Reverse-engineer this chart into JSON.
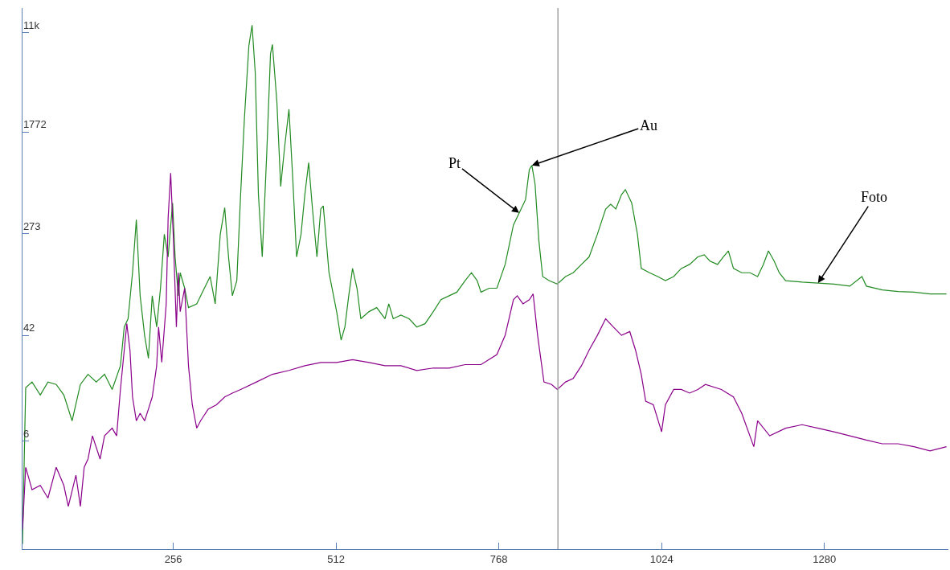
{
  "chart_data": {
    "type": "line",
    "log": "y",
    "marker": "none",
    "line_style": "solid",
    "xlim": [
      19,
      1475
    ],
    "ylim": [
      0.82,
      17400
    ],
    "xticks": [
      256,
      512,
      768,
      1024,
      1280
    ],
    "yticks": [
      6,
      42,
      273,
      1772,
      {
        "value": 11000,
        "label": "11k"
      }
    ],
    "ref_lines": [
      {
        "axis": "x",
        "value": 861,
        "color": "#a0a0a0"
      }
    ],
    "annotations": [
      {
        "text": "Pt",
        "x": 800,
        "y": 400
      },
      {
        "text": "Au",
        "x": 820,
        "y": 960
      },
      {
        "text": "Foto",
        "x": 1270,
        "y": 110
      }
    ],
    "series": [
      {
        "color": "#228b22",
        "x": [
          19,
          24,
          34,
          47,
          59,
          72,
          84,
          97,
          110,
          122,
          135,
          148,
          160,
          173,
          179,
          185,
          192,
          198,
          204,
          211,
          217,
          223,
          230,
          236,
          242,
          248,
          255,
          259,
          264,
          267,
          274,
          280,
          293,
          305,
          314,
          322,
          330,
          337,
          343,
          349,
          356,
          362,
          368,
          375,
          380,
          385,
          390,
          396,
          403,
          409,
          412,
          419,
          425,
          431,
          438,
          444,
          450,
          457,
          463,
          469,
          475,
          482,
          488,
          492,
          501,
          513,
          520,
          526,
          532,
          538,
          545,
          551,
          564,
          576,
          589,
          595,
          602,
          614,
          627,
          639,
          652,
          665,
          677,
          690,
          702,
          715,
          725,
          734,
          740,
          753,
          765,
          778,
          791,
          803,
          810,
          816,
          820,
          825,
          831,
          837,
          847,
          860,
          873,
          885,
          898,
          910,
          923,
          936,
          944,
          952,
          961,
          967,
          977,
          986,
          992,
          1005,
          1018,
          1030,
          1043,
          1055,
          1068,
          1081,
          1091,
          1100,
          1112,
          1121,
          1129,
          1137,
          1150,
          1163,
          1175,
          1184,
          1192,
          1201,
          1209,
          1219,
          1245,
          1270,
          1295,
          1320,
          1339,
          1346,
          1371,
          1396,
          1421,
          1446,
          1472
        ],
        "values": [
          0.9,
          16,
          17.8,
          14,
          17.8,
          17,
          14,
          8.7,
          17,
          20.5,
          17.8,
          20.5,
          15.5,
          24,
          49,
          57,
          133,
          353,
          87,
          42,
          27.5,
          87,
          49,
          100,
          270,
          178,
          480,
          178,
          87,
          133,
          100,
          70,
          75,
          100,
          124,
          75,
          270,
          440,
          178,
          87,
          115,
          560,
          2300,
          8700,
          12700,
          5300,
          560,
          178,
          1170,
          7500,
          8900,
          3100,
          650,
          1320,
          2700,
          750,
          178,
          270,
          560,
          1010,
          430,
          178,
          430,
          455,
          133,
          65,
          38.5,
          49,
          87,
          144,
          100,
          57,
          65,
          70,
          57,
          75,
          57,
          61,
          57,
          49,
          52,
          65,
          81,
          87,
          93,
          115,
          133,
          115,
          93,
          100,
          100,
          155,
          320,
          430,
          510,
          890,
          960,
          680,
          240,
          124,
          115,
          108,
          124,
          133,
          155,
          178,
          270,
          430,
          470,
          430,
          560,
          615,
          480,
          270,
          144,
          133,
          124,
          115,
          124,
          144,
          155,
          178,
          185,
          165,
          155,
          178,
          199,
          144,
          133,
          133,
          124,
          155,
          199,
          165,
          133,
          115,
          112,
          110,
          108,
          104,
          124,
          104,
          97,
          94,
          93,
          90,
          90
        ]
      },
      {
        "color": "#8b008b",
        "x": [
          19,
          24,
          34,
          47,
          59,
          72,
          84,
          91,
          103,
          110,
          116,
          122,
          129,
          141,
          148,
          160,
          167,
          173,
          179,
          183,
          188,
          192,
          198,
          204,
          211,
          217,
          223,
          230,
          233,
          238,
          245,
          248,
          252,
          256,
          261,
          264,
          267,
          274,
          280,
          286,
          293,
          299,
          311,
          324,
          337,
          349,
          362,
          387,
          412,
          438,
          463,
          488,
          513,
          538,
          564,
          589,
          614,
          639,
          665,
          690,
          715,
          740,
          765,
          778,
          791,
          797,
          806,
          816,
          822,
          829,
          839,
          851,
          860,
          873,
          885,
          898,
          910,
          923,
          936,
          948,
          961,
          974,
          983,
          992,
          999,
          1011,
          1024,
          1030,
          1043,
          1055,
          1068,
          1081,
          1093,
          1118,
          1137,
          1150,
          1169,
          1175,
          1194,
          1219,
          1245,
          1270,
          1295,
          1320,
          1346,
          1371,
          1396,
          1421,
          1446,
          1472
        ],
        "values": [
          1.18,
          3.7,
          2.45,
          2.65,
          2.1,
          3.7,
          2.65,
          1.8,
          3.2,
          1.8,
          3.7,
          4.3,
          6.6,
          4.3,
          6.6,
          7.6,
          6.6,
          15.5,
          32,
          52,
          32,
          13.5,
          8.7,
          10,
          8.7,
          10.8,
          13.5,
          24,
          49,
          25.5,
          75,
          365,
          834,
          270,
          49,
          133,
          65,
          100,
          24,
          11.7,
          7.6,
          8.7,
          10.8,
          11.7,
          13.5,
          14.5,
          15.5,
          17.8,
          20.5,
          22,
          24,
          25.5,
          25.5,
          26.8,
          25.5,
          24,
          24,
          22,
          23,
          23,
          24.5,
          24.5,
          29.5,
          42,
          81,
          87,
          75,
          81,
          90,
          42,
          17.8,
          17,
          15.5,
          17.8,
          19,
          24,
          32,
          42,
          57,
          49,
          42,
          45,
          32,
          20.5,
          12.5,
          11.7,
          7.1,
          11.7,
          15.5,
          15.5,
          14.5,
          15.5,
          17,
          15.5,
          13.5,
          10,
          5.4,
          8.7,
          6.6,
          7.6,
          8.1,
          7.6,
          7.1,
          6.6,
          6.1,
          5.7,
          5.7,
          5.4,
          5.0,
          5.4
        ]
      }
    ]
  }
}
